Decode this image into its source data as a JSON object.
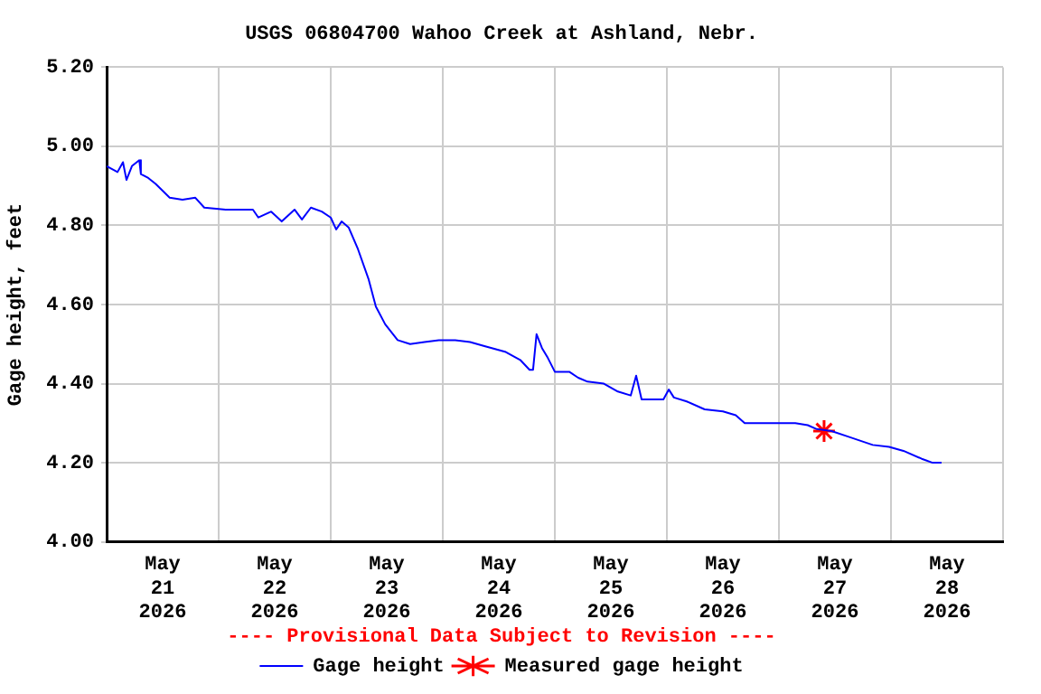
{
  "chart_data": {
    "type": "line",
    "title": "USGS 06804700 Wahoo Creek at Ashland, Nebr.",
    "ylabel": "Gage height, feet",
    "annotations": [
      "---- Provisional Data Subject to Revision ----"
    ],
    "xlim": [
      "2026-05-21T00:00",
      "2026-05-29T00:00"
    ],
    "xticks": [
      {
        "value": "2026-05-21T00:00",
        "label": null
      },
      {
        "value": "2026-05-21T12:00",
        "label": "May 21 2026"
      },
      {
        "value": "2026-05-22T00:00",
        "label": null
      },
      {
        "value": "2026-05-22T12:00",
        "label": "May 22 2026"
      },
      {
        "value": "2026-05-23T00:00",
        "label": null
      },
      {
        "value": "2026-05-23T12:00",
        "label": "May 23 2026"
      },
      {
        "value": "2026-05-24T00:00",
        "label": null
      },
      {
        "value": "2026-05-24T12:00",
        "label": "May 24 2026"
      },
      {
        "value": "2026-05-25T00:00",
        "label": null
      },
      {
        "value": "2026-05-25T12:00",
        "label": "May 25 2026"
      },
      {
        "value": "2026-05-26T00:00",
        "label": null
      },
      {
        "value": "2026-05-26T12:00",
        "label": "May 26 2026"
      },
      {
        "value": "2026-05-27T00:00",
        "label": null
      },
      {
        "value": "2026-05-27T12:00",
        "label": "May 27 2026"
      },
      {
        "value": "2026-05-28T00:00",
        "label": null
      },
      {
        "value": "2026-05-28T12:00",
        "label": "May 28 2026"
      },
      {
        "value": "2026-05-29T00:00",
        "label": null
      }
    ],
    "ylim": [
      4.0,
      5.2
    ],
    "yticks": [
      {
        "value": 4.0,
        "label": "4.00"
      },
      {
        "value": 4.2,
        "label": "4.20"
      },
      {
        "value": 4.4,
        "label": "4.40"
      },
      {
        "value": 4.6,
        "label": "4.60"
      },
      {
        "value": 4.8,
        "label": "4.80"
      },
      {
        "value": 5.0,
        "label": "5.00"
      },
      {
        "value": 5.2,
        "label": "5.20"
      }
    ],
    "grid": true,
    "legend": "bottom",
    "series": [
      {
        "name": "Gage height",
        "type": "line",
        "color": "#0000ff",
        "marker": "none",
        "line_style": "solid",
        "x": [
          "2026-05-21T00:00",
          "2026-05-21T02:20",
          "2026-05-21T03:30",
          "2026-05-21T04:15",
          "2026-05-21T05:25",
          "2026-05-21T07:00",
          "2026-05-21T07:20",
          "2026-05-21T08:55",
          "2026-05-21T10:30",
          "2026-05-21T13:30",
          "2026-05-21T16:15",
          "2026-05-21T19:00",
          "2026-05-21T20:55",
          "2026-05-22T01:30",
          "2026-05-22T07:20",
          "2026-05-22T08:30",
          "2026-05-22T11:15",
          "2026-05-22T13:30",
          "2026-05-22T16:15",
          "2026-05-22T17:50",
          "2026-05-22T19:45",
          "2026-05-22T22:05",
          "2026-05-23T00:00",
          "2026-05-23T01:10",
          "2026-05-23T02:20",
          "2026-05-23T03:50",
          "2026-05-23T05:50",
          "2026-05-23T08:05",
          "2026-05-23T09:40",
          "2026-05-23T11:40",
          "2026-05-23T14:20",
          "2026-05-23T17:00",
          "2026-05-23T20:05",
          "2026-05-23T23:10",
          "2026-05-24T02:40",
          "2026-05-24T05:50",
          "2026-05-24T08:55",
          "2026-05-24T13:30",
          "2026-05-24T16:35",
          "2026-05-24T18:35",
          "2026-05-24T19:20",
          "2026-05-24T20:05",
          "2026-05-24T21:15",
          "2026-05-24T22:30",
          "2026-05-25T00:00",
          "2026-05-25T03:05",
          "2026-05-25T05:00",
          "2026-05-25T07:00",
          "2026-05-25T10:30",
          "2026-05-25T13:30",
          "2026-05-25T16:15",
          "2026-05-25T17:25",
          "2026-05-25T18:35",
          "2026-05-25T23:15",
          "2026-05-26T00:25",
          "2026-05-26T01:30",
          "2026-05-26T04:15",
          "2026-05-26T08:05",
          "2026-05-26T12:00",
          "2026-05-26T14:45",
          "2026-05-26T16:40",
          "2026-05-26T21:40",
          "2026-05-27T03:30",
          "2026-05-27T06:10",
          "2026-05-27T08:05",
          "2026-05-27T11:15",
          "2026-05-27T15:05",
          "2026-05-27T20:05",
          "2026-05-27T23:35",
          "2026-05-28T02:40",
          "2026-05-28T06:35",
          "2026-05-28T08:55",
          "2026-05-28T10:50"
        ],
        "values": [
          4.95,
          4.935,
          4.96,
          4.915,
          4.95,
          4.965,
          4.93,
          4.92,
          4.905,
          4.87,
          4.865,
          4.87,
          4.845,
          4.84,
          4.84,
          4.82,
          4.835,
          4.81,
          4.84,
          4.815,
          4.845,
          4.835,
          4.82,
          4.79,
          4.81,
          4.795,
          4.74,
          4.665,
          4.595,
          4.55,
          4.51,
          4.5,
          4.505,
          4.51,
          4.51,
          4.505,
          4.495,
          4.48,
          4.46,
          4.435,
          4.435,
          4.525,
          4.49,
          4.465,
          4.43,
          4.43,
          4.415,
          4.405,
          4.4,
          4.38,
          4.37,
          4.42,
          4.36,
          4.36,
          4.385,
          4.365,
          4.355,
          4.335,
          4.33,
          4.32,
          4.3,
          4.3,
          4.3,
          4.295,
          4.285,
          4.28,
          4.265,
          4.245,
          4.24,
          4.23,
          4.21,
          4.2,
          4.2
        ]
      },
      {
        "name": "Measured gage height",
        "type": "scatter",
        "color": "#ff0000",
        "marker": "cross",
        "x": [
          "2026-05-27T09:40"
        ],
        "values": [
          4.28
        ]
      }
    ]
  }
}
